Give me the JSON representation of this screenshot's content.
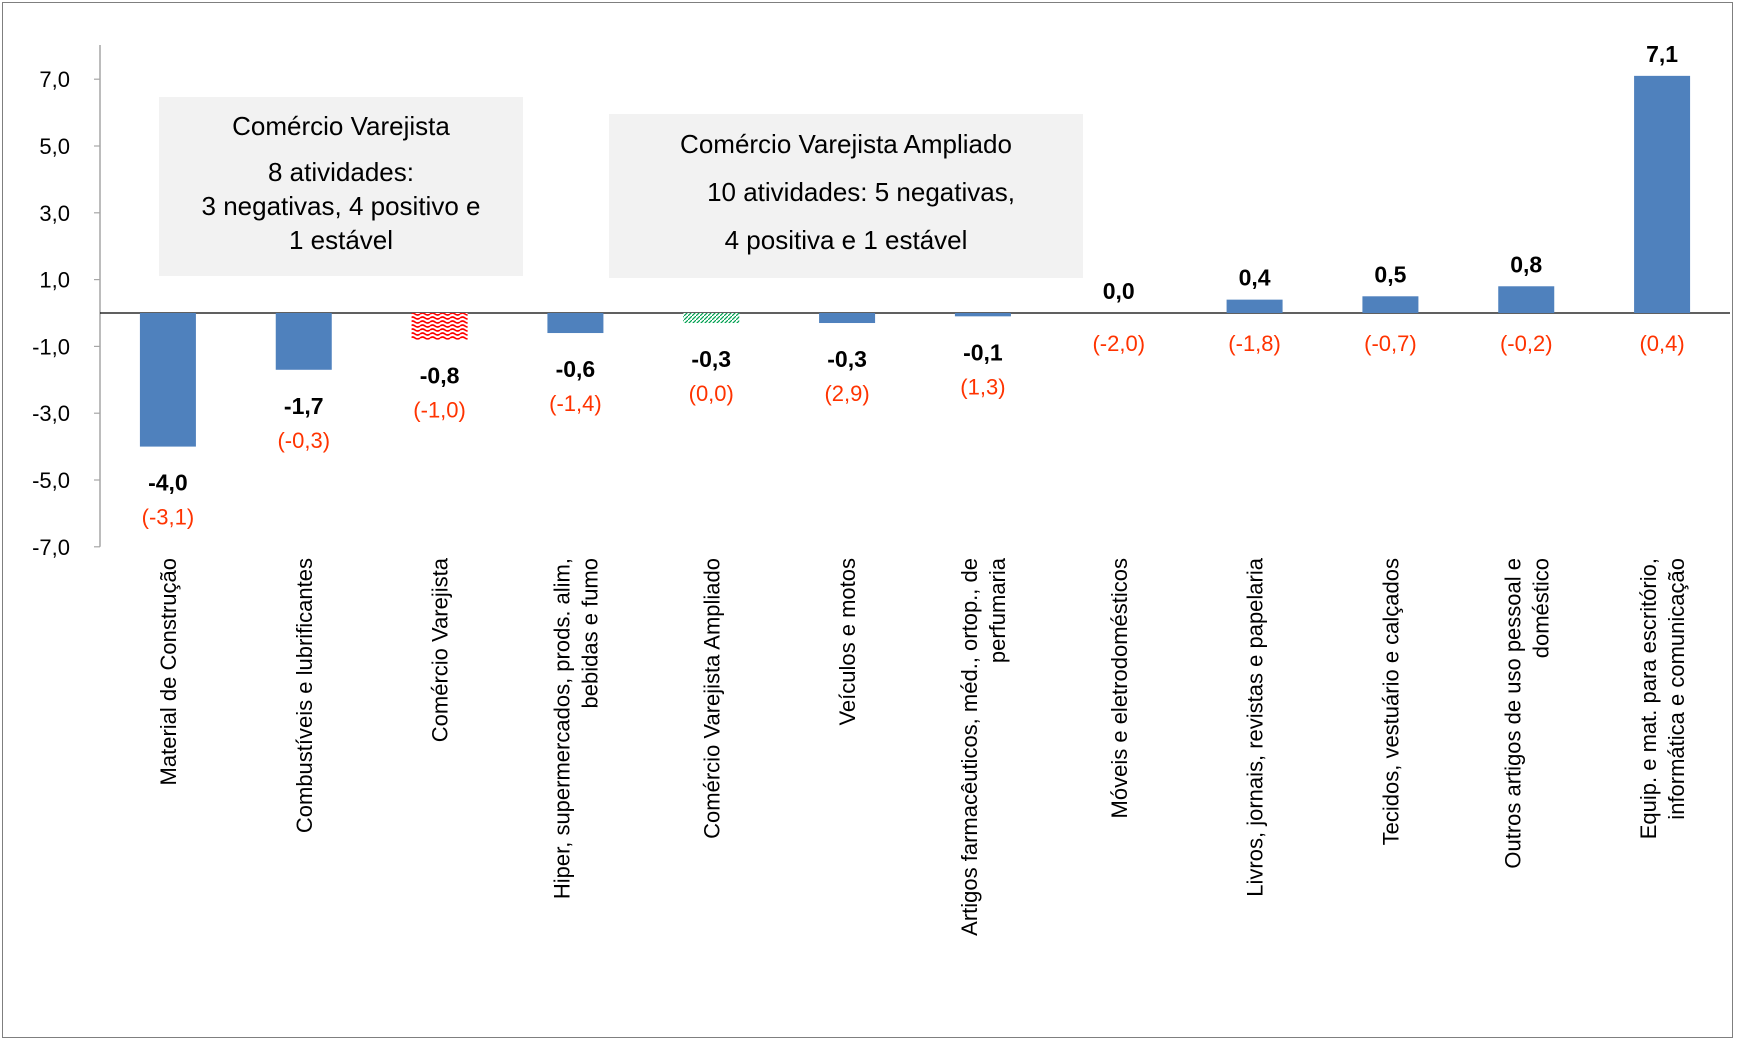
{
  "chart_data": {
    "type": "bar",
    "categories": [
      "Material de Construção",
      "Combustíveis e lubrificantes",
      "Comércio Varejista",
      "Hiper, supermercados, prods. alim, bebidas e fumo",
      "Comércio Varejista Ampliado",
      "Veículos e motos",
      "Artigos farmacêuticos, méd., ortop., de perfumaria",
      "Móveis e eletrodomésticos",
      "Livros, jornais, revistas e papelaria",
      "Tecidos, vestuário e calçados",
      "Outros artigos de uso pessoal e doméstico",
      "Equip. e mat. para escritório, informática e comunicação"
    ],
    "category_label_lines": [
      [
        "Material de Construção"
      ],
      [
        "Combustíveis e lubrificantes"
      ],
      [
        "Comércio Varejista"
      ],
      [
        "Hiper, supermercados, prods. alim,",
        "bebidas e fumo"
      ],
      [
        "Comércio Varejista Ampliado"
      ],
      [
        "Veículos e motos"
      ],
      [
        "Artigos farmacêuticos, méd., ortop., de",
        "perfumaria"
      ],
      [
        "Móveis e eletrodomésticos"
      ],
      [
        "Livros, jornais, revistas e papelaria"
      ],
      [
        "Tecidos, vestuário e calçados"
      ],
      [
        "Outros artigos de uso pessoal e",
        "doméstico"
      ],
      [
        "Equip. e mat. para escritório,",
        "informática e comunicação"
      ]
    ],
    "values": [
      -4.0,
      -1.7,
      -0.8,
      -0.6,
      -0.3,
      -0.3,
      -0.1,
      0.0,
      0.4,
      0.5,
      0.8,
      7.1
    ],
    "value_labels": [
      "-4,0",
      "-1,7",
      "-0,8",
      "-0,6",
      "-0,3",
      "-0,3",
      "-0,1",
      "0,0",
      "0,4",
      "0,5",
      "0,8",
      "7,1"
    ],
    "secondary_labels": [
      "(-3,1)",
      "(-0,3)",
      "(-1,0)",
      "(-1,4)",
      "(0,0)",
      "(2,9)",
      "(1,3)",
      "(-2,0)",
      "(-1,8)",
      "(-0,7)",
      "(-0,2)",
      "(0,4)"
    ],
    "bar_styles": [
      "solid",
      "solid",
      "red-wave",
      "solid",
      "green-hatch",
      "solid",
      "solid",
      "solid",
      "solid",
      "solid",
      "solid",
      "solid"
    ],
    "yticks": [
      "7,0",
      "5,0",
      "3,0",
      "1,0",
      "-1,0",
      "-3,0",
      "-5,0",
      "-7,0"
    ],
    "ytick_values": [
      7,
      5,
      3,
      1,
      -1,
      -3,
      -5,
      -7
    ],
    "ylim": [
      -7,
      7.5
    ],
    "xlabel": "",
    "ylabel": "",
    "title": "",
    "grid": false,
    "colors": {
      "bar": "#4f81bd",
      "secondary_label": "#ff3300",
      "wave": "#ff0000",
      "hatch": "#00a050",
      "axis": "#a6a6a6",
      "annotation_bg": "#f2f2f2"
    }
  },
  "annotations": {
    "retail": {
      "title": "Comércio Varejista",
      "line1": "8 atividades:",
      "line2": "3 negativas, 4 positivo e",
      "line3": "1 estável"
    },
    "expanded": {
      "title": "Comércio Varejista Ampliado",
      "line1": "10 atividades: 5 negativas,",
      "line2": "4 positiva e 1 estável"
    }
  }
}
